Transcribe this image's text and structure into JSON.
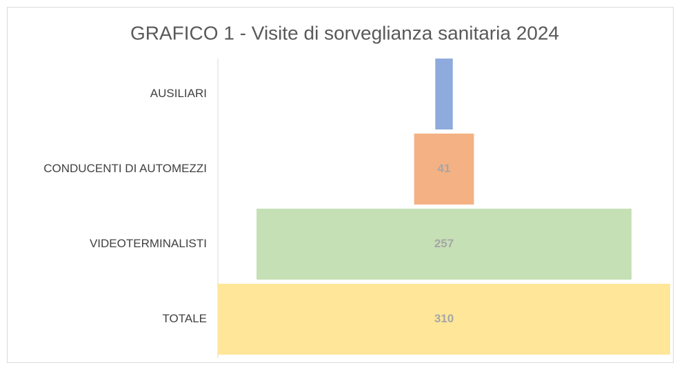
{
  "chart_data": {
    "type": "funnel",
    "title": "GRAFICO 1 - Visite di sorveglianza sanitaria 2024",
    "categories": [
      "AUSILIARI",
      "CONDUCENTI DI AUTOMEZZI",
      "VIDEOTERMINALISTI",
      "TOTALE"
    ],
    "values": [
      12,
      41,
      257,
      310
    ],
    "value_labels": [
      null,
      "41",
      "257",
      "310"
    ],
    "colors": [
      "#8faadc",
      "#f4b183",
      "#c5e0b4",
      "#ffe699"
    ]
  }
}
